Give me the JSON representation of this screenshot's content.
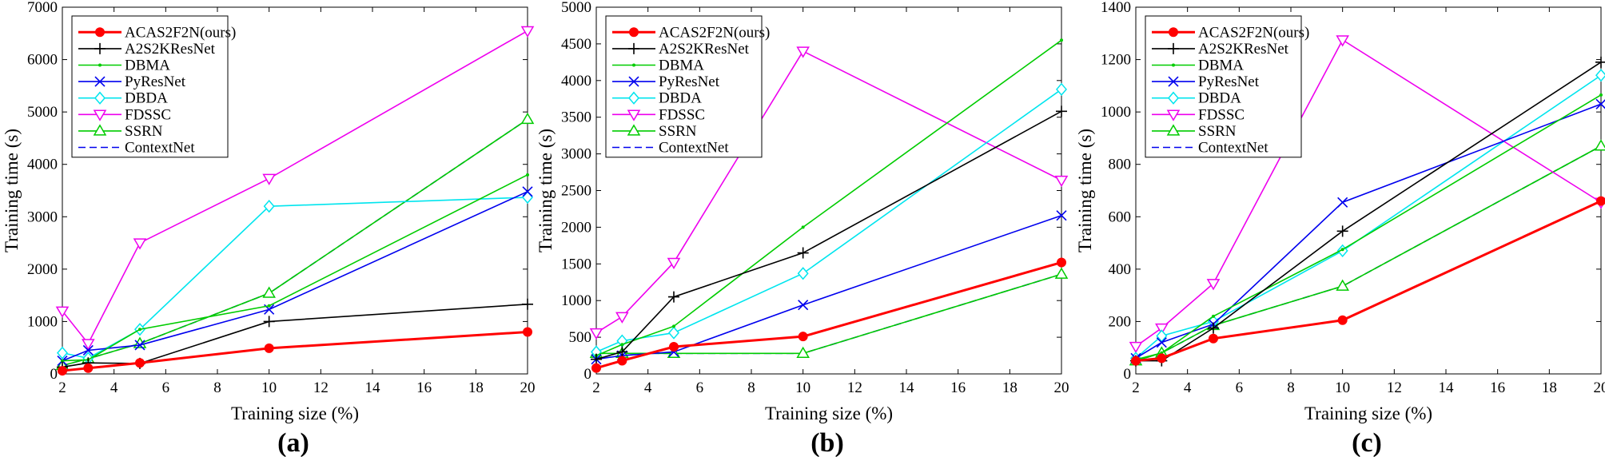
{
  "chart_data": [
    {
      "type": "line",
      "panel_label": "(a)",
      "x": [
        2,
        3,
        5,
        10,
        20
      ],
      "xlabel": "Training size (%)",
      "ylabel": "Training time (s)",
      "xlim": [
        2,
        20
      ],
      "ylim": [
        0,
        7000
      ],
      "xticks": [
        "2",
        "4",
        "6",
        "8",
        "10",
        "12",
        "14",
        "16",
        "18",
        "20"
      ],
      "yticks": [
        "0",
        "1000",
        "2000",
        "3000",
        "4000",
        "5000",
        "6000",
        "7000"
      ],
      "legend_position": "top-left",
      "grid": false,
      "series": [
        {
          "name": "ACAS2F2N(ours)",
          "color": "#ff0000",
          "marker": "dot",
          "values": [
            60,
            110,
            210,
            490,
            800
          ]
        },
        {
          "name": "A2S2KResNet",
          "color": "#000000",
          "marker": "plus",
          "values": [
            130,
            210,
            200,
            1000,
            1330
          ]
        },
        {
          "name": "DBMA",
          "color": "#00cc00",
          "marker": "point",
          "values": [
            250,
            270,
            850,
            1300,
            3800
          ]
        },
        {
          "name": "PyResNet",
          "color": "#0000ee",
          "marker": "x",
          "values": [
            250,
            450,
            550,
            1230,
            3480
          ]
        },
        {
          "name": "DBDA",
          "color": "#00e5ee",
          "marker": "diamond",
          "values": [
            400,
            300,
            850,
            3200,
            3370
          ]
        },
        {
          "name": "FDSSC",
          "color": "#ee00ee",
          "marker": "tri-down",
          "values": [
            1200,
            580,
            2500,
            3730,
            6550
          ]
        },
        {
          "name": "SSRN",
          "color": "#00cc00",
          "marker": "tri-up",
          "values": [
            160,
            290,
            580,
            1540,
            4860
          ]
        },
        {
          "name": "ContextNet",
          "color": "#0000ee",
          "marker": "dash",
          "values": [
            160,
            290,
            580,
            1540,
            4860
          ]
        }
      ]
    },
    {
      "type": "line",
      "panel_label": "(b)",
      "x": [
        2,
        3,
        5,
        10,
        20
      ],
      "xlabel": "Training size (%)",
      "ylabel": "Training time (s)",
      "xlim": [
        2,
        20
      ],
      "ylim": [
        0,
        5000
      ],
      "xticks": [
        "2",
        "4",
        "6",
        "8",
        "10",
        "12",
        "14",
        "16",
        "18",
        "20"
      ],
      "yticks": [
        "0",
        "500",
        "1000",
        "1500",
        "2000",
        "2500",
        "3000",
        "3500",
        "4000",
        "4500",
        "5000"
      ],
      "legend_position": "top-left",
      "grid": false,
      "series": [
        {
          "name": "ACAS2F2N(ours)",
          "color": "#ff0000",
          "marker": "dot",
          "values": [
            80,
            180,
            370,
            510,
            1520
          ]
        },
        {
          "name": "A2S2KResNet",
          "color": "#000000",
          "marker": "plus",
          "values": [
            200,
            300,
            1050,
            1650,
            3580
          ]
        },
        {
          "name": "DBMA",
          "color": "#00cc00",
          "marker": "point",
          "values": [
            250,
            400,
            650,
            2000,
            4550
          ]
        },
        {
          "name": "PyResNet",
          "color": "#0000ee",
          "marker": "x",
          "values": [
            200,
            250,
            300,
            940,
            2160
          ]
        },
        {
          "name": "DBDA",
          "color": "#00e5ee",
          "marker": "diamond",
          "values": [
            300,
            450,
            560,
            1370,
            3880
          ]
        },
        {
          "name": "FDSSC",
          "color": "#ee00ee",
          "marker": "tri-down",
          "values": [
            560,
            780,
            1520,
            4400,
            2640
          ]
        },
        {
          "name": "SSRN",
          "color": "#00cc00",
          "marker": "tri-up",
          "values": [
            280,
            280,
            280,
            280,
            1360
          ]
        },
        {
          "name": "ContextNet",
          "color": "#0000ee",
          "marker": "dash",
          "values": [
            280,
            280,
            280,
            280,
            1360
          ]
        }
      ]
    },
    {
      "type": "line",
      "panel_label": "(c)",
      "x": [
        2,
        3,
        5,
        10,
        20
      ],
      "xlabel": "Training size (%)",
      "ylabel": "Training time (s)",
      "xlim": [
        2,
        20
      ],
      "ylim": [
        0,
        1400
      ],
      "xticks": [
        "2",
        "4",
        "6",
        "8",
        "10",
        "12",
        "14",
        "16",
        "18",
        "20"
      ],
      "yticks": [
        "0",
        "200",
        "400",
        "600",
        "800",
        "1000",
        "1200",
        "1400"
      ],
      "legend_position": "top-left",
      "grid": false,
      "series": [
        {
          "name": "ACAS2F2N(ours)",
          "color": "#ff0000",
          "marker": "dot",
          "values": [
            50,
            60,
            135,
            205,
            660
          ]
        },
        {
          "name": "A2S2KResNet",
          "color": "#000000",
          "marker": "plus",
          "values": [
            50,
            50,
            175,
            545,
            1190
          ]
        },
        {
          "name": "DBMA",
          "color": "#00cc00",
          "marker": "point",
          "values": [
            55,
            80,
            220,
            475,
            1065
          ]
        },
        {
          "name": "PyResNet",
          "color": "#0000ee",
          "marker": "x",
          "values": [
            60,
            120,
            190,
            655,
            1030
          ]
        },
        {
          "name": "DBDA",
          "color": "#00e5ee",
          "marker": "diamond",
          "values": [
            60,
            145,
            200,
            470,
            1140
          ]
        },
        {
          "name": "FDSSC",
          "color": "#ee00ee",
          "marker": "tri-down",
          "values": [
            105,
            175,
            345,
            1275,
            655
          ]
        },
        {
          "name": "SSRN",
          "color": "#00cc00",
          "marker": "tri-up",
          "values": [
            50,
            80,
            185,
            335,
            870
          ]
        },
        {
          "name": "ContextNet",
          "color": "#0000ee",
          "marker": "dash",
          "values": [
            50,
            80,
            185,
            335,
            870
          ]
        }
      ]
    }
  ]
}
